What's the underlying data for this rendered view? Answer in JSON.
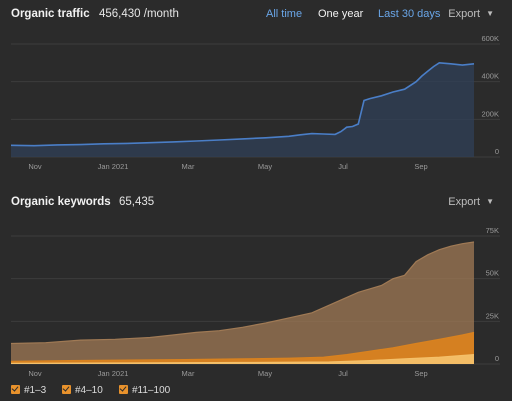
{
  "traffic": {
    "title": "Organic traffic",
    "value": "456,430 /month",
    "tabs": [
      {
        "label": "All time",
        "active": false
      },
      {
        "label": "One year",
        "active": true
      },
      {
        "label": "Last 30 days",
        "active": false
      }
    ],
    "export_label": "Export"
  },
  "keywords": {
    "title": "Organic keywords",
    "value": "65,435",
    "export_label": "Export"
  },
  "colors": {
    "traffic_line": "#4a7ec7",
    "traffic_fill": "#2f3f55",
    "kw_11_100": "#a07a55",
    "kw_4_10": "#d9821f",
    "kw_1_3": "#f4c06a",
    "legend_box": "#e8922c"
  },
  "chart_data": [
    {
      "type": "line",
      "title": "",
      "x_ticks": [
        "Nov",
        "Jan 2021",
        "Mar",
        "May",
        "Jul",
        "Sep"
      ],
      "y_ticks": [
        "600K",
        "400K",
        "200K",
        "0"
      ],
      "ylim": [
        0,
        600000
      ],
      "series": [
        {
          "values": [
            [
              0,
              62000
            ],
            [
              4,
              60000
            ],
            [
              8,
              64000
            ],
            [
              12,
              66000
            ],
            [
              16,
              70000
            ],
            [
              20,
              72000
            ],
            [
              24,
              76000
            ],
            [
              28,
              80000
            ],
            [
              32,
              85000
            ],
            [
              36,
              90000
            ],
            [
              40,
              96000
            ],
            [
              44,
              102000
            ],
            [
              48,
              110000
            ],
            [
              50,
              118000
            ],
            [
              52,
              124000
            ],
            [
              54,
              122000
            ],
            [
              56,
              120000
            ],
            [
              57,
              135000
            ],
            [
              58,
              158000
            ],
            [
              59,
              162000
            ],
            [
              60,
              175000
            ],
            [
              61,
              300000
            ],
            [
              62,
              310000
            ],
            [
              64,
              325000
            ],
            [
              66,
              345000
            ],
            [
              68,
              360000
            ],
            [
              70,
              400000
            ],
            [
              71,
              430000
            ],
            [
              72,
              455000
            ],
            [
              73,
              480000
            ],
            [
              74,
              500000
            ],
            [
              76,
              495000
            ],
            [
              78,
              488000
            ],
            [
              80,
              495000
            ]
          ]
        }
      ]
    },
    {
      "type": "area",
      "title": "",
      "x_ticks": [
        "Nov",
        "Jan 2021",
        "Mar",
        "May",
        "Jul",
        "Sep"
      ],
      "y_ticks": [
        "75K",
        "50K",
        "25K",
        "0"
      ],
      "ylim": [
        0,
        75000
      ],
      "series": [
        {
          "name": "#11–100",
          "values": [
            [
              0,
              12000
            ],
            [
              6,
              12500
            ],
            [
              12,
              14000
            ],
            [
              18,
              14500
            ],
            [
              24,
              15500
            ],
            [
              28,
              17000
            ],
            [
              32,
              18500
            ],
            [
              36,
              19500
            ],
            [
              40,
              21500
            ],
            [
              44,
              24000
            ],
            [
              48,
              27000
            ],
            [
              52,
              30000
            ],
            [
              56,
              36000
            ],
            [
              60,
              42000
            ],
            [
              64,
              46000
            ],
            [
              66,
              50000
            ],
            [
              68,
              52000
            ],
            [
              70,
              60000
            ],
            [
              72,
              64000
            ],
            [
              74,
              67000
            ],
            [
              76,
              69000
            ],
            [
              78,
              70500
            ],
            [
              80,
              71500
            ]
          ]
        },
        {
          "name": "#4–10",
          "values": [
            [
              0,
              1500
            ],
            [
              10,
              2000
            ],
            [
              20,
              2300
            ],
            [
              30,
              2600
            ],
            [
              40,
              3000
            ],
            [
              48,
              3400
            ],
            [
              54,
              4000
            ],
            [
              58,
              5500
            ],
            [
              62,
              7500
            ],
            [
              66,
              9500
            ],
            [
              70,
              12000
            ],
            [
              74,
              14500
            ],
            [
              78,
              17000
            ],
            [
              80,
              18500
            ]
          ]
        },
        {
          "name": "#1–3",
          "values": [
            [
              0,
              400
            ],
            [
              20,
              600
            ],
            [
              40,
              900
            ],
            [
              55,
              1200
            ],
            [
              62,
              2000
            ],
            [
              68,
              3000
            ],
            [
              74,
              4000
            ],
            [
              80,
              5500
            ]
          ]
        }
      ]
    }
  ]
}
